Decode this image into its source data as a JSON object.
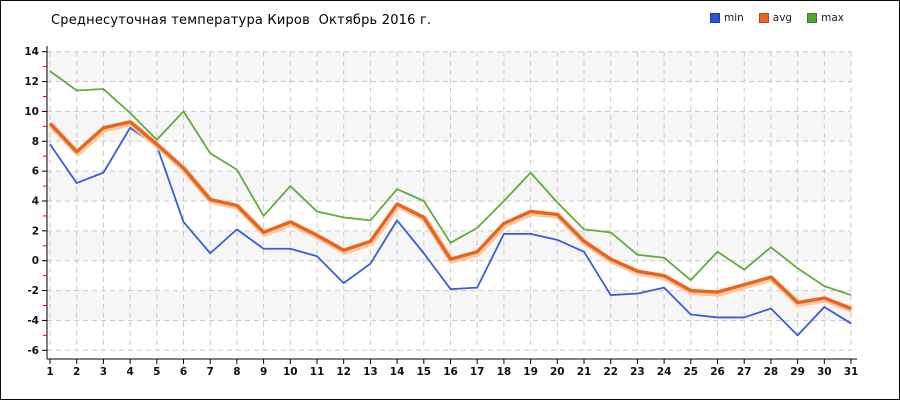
{
  "title": "Среднесуточная температура Киров  Октябрь 2016 г.",
  "legend": [
    {
      "label": "min",
      "color": "#2f50d6"
    },
    {
      "label": "avg",
      "color": "#e8661f"
    },
    {
      "label": "max",
      "color": "#55a52a"
    }
  ],
  "chart_data": {
    "type": "line",
    "title": "Среднесуточная температура Киров  Октябрь 2016 г.",
    "xlabel": "",
    "ylabel": "",
    "x": [
      1,
      2,
      3,
      4,
      5,
      6,
      7,
      8,
      9,
      10,
      11,
      12,
      13,
      14,
      15,
      16,
      17,
      18,
      19,
      20,
      21,
      22,
      23,
      24,
      25,
      26,
      27,
      28,
      29,
      30,
      31
    ],
    "series": [
      {
        "name": "min",
        "color": "#3a5dd8",
        "width": 1.8,
        "values": [
          7.8,
          5.2,
          5.9,
          8.9,
          7.7,
          2.6,
          0.5,
          2.1,
          0.8,
          0.8,
          0.3,
          -1.5,
          -0.2,
          2.7,
          0.5,
          -1.9,
          -1.8,
          1.8,
          1.8,
          1.4,
          0.6,
          -2.3,
          -2.2,
          -1.8,
          -3.6,
          -3.8,
          -3.8,
          -3.2,
          -5.0,
          -3.1,
          -4.2
        ]
      },
      {
        "name": "avg",
        "color": "#e8651f",
        "width": 3.4,
        "halo": "#f7c7a0",
        "values": [
          9.2,
          7.3,
          8.9,
          9.3,
          7.8,
          6.2,
          4.1,
          3.7,
          1.9,
          2.6,
          1.7,
          0.7,
          1.3,
          3.8,
          2.9,
          0.1,
          0.6,
          2.5,
          3.3,
          3.1,
          1.3,
          0.1,
          -0.7,
          -1.0,
          -2.0,
          -2.1,
          -1.6,
          -1.1,
          -2.8,
          -2.5,
          -3.2
        ]
      },
      {
        "name": "max",
        "color": "#61ad3b",
        "width": 1.8,
        "values": [
          12.7,
          11.4,
          11.5,
          9.9,
          8.1,
          10.0,
          7.2,
          6.1,
          3.0,
          5.0,
          3.3,
          2.9,
          2.7,
          4.8,
          4.0,
          1.2,
          2.2,
          4.0,
          5.9,
          3.9,
          2.1,
          1.9,
          0.4,
          0.2,
          -1.3,
          0.6,
          -0.6,
          0.9,
          -0.5,
          -1.7,
          -2.3
        ]
      }
    ],
    "ylim": [
      -6,
      14
    ],
    "yticks": [
      14,
      12,
      10,
      8,
      6,
      4,
      2,
      0,
      -2,
      -4,
      -6
    ],
    "grid": true,
    "grid_style": "dashed",
    "band_colors": [
      "#f6f6f6",
      "#ffffff"
    ],
    "minor_tick_color": "#cc1111",
    "legend_position": "top-right"
  }
}
